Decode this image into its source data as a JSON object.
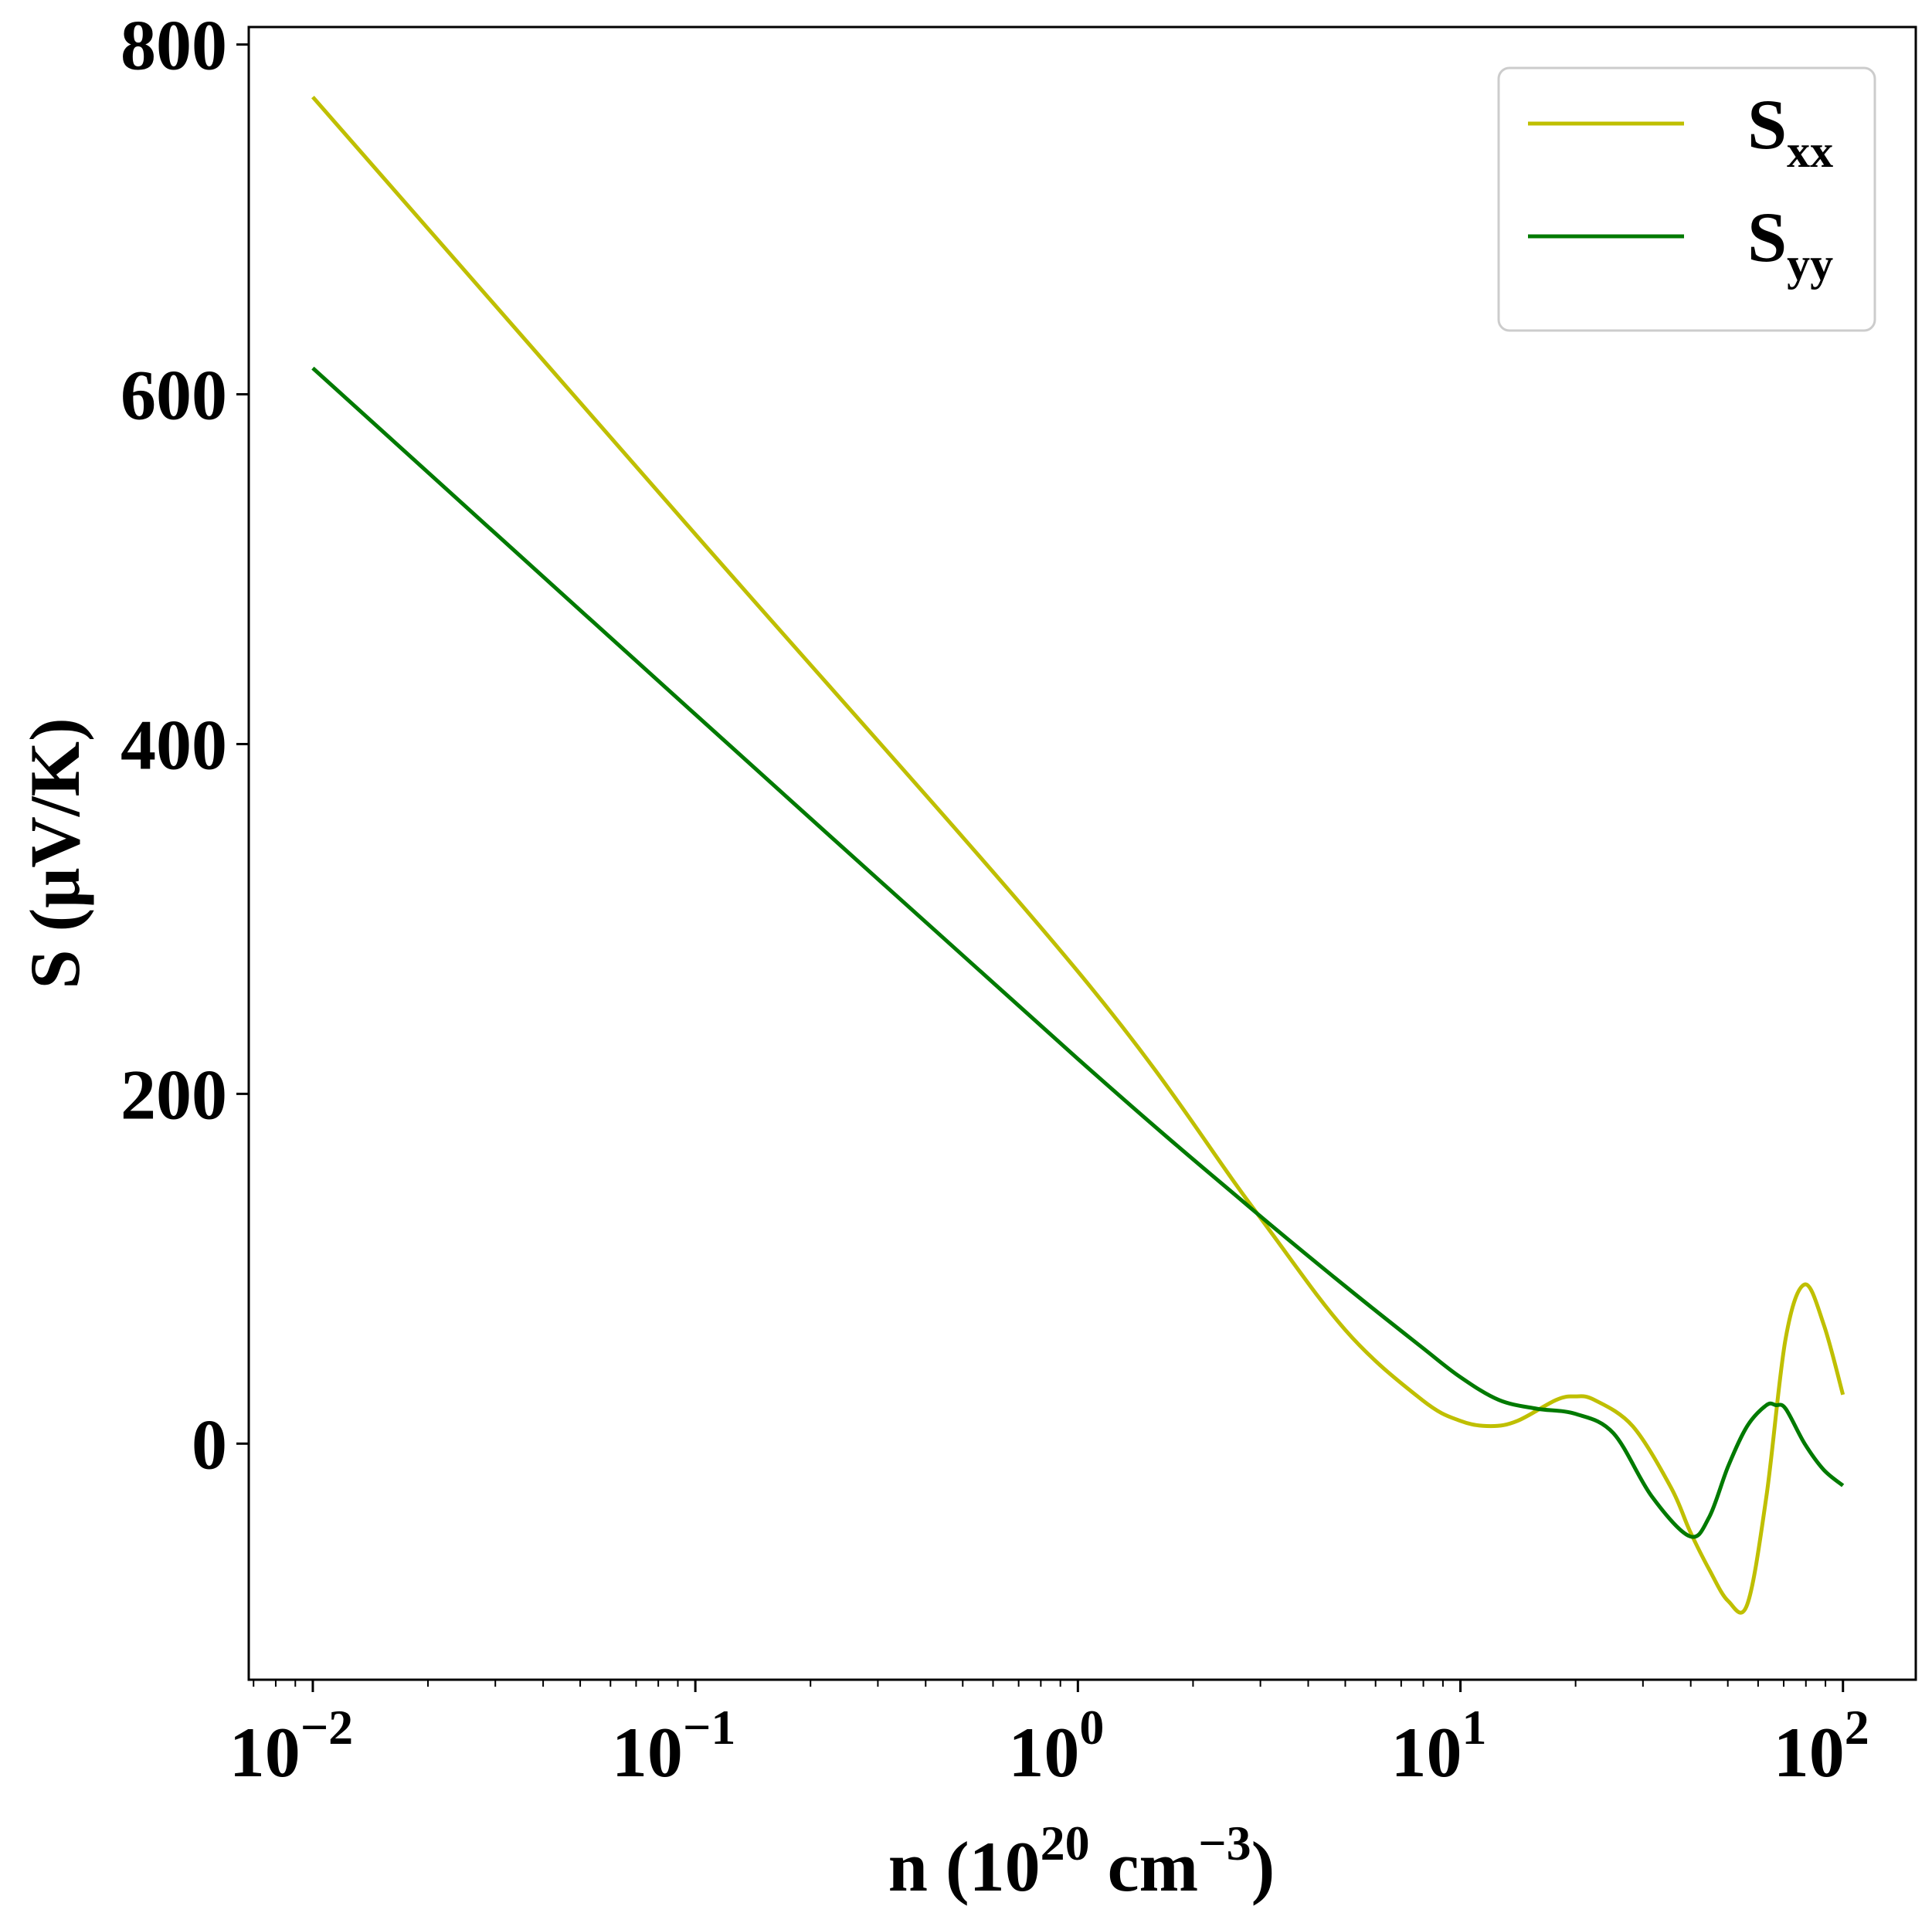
{
  "chart_data": {
    "type": "line",
    "title": "",
    "xlabel": {
      "main": "n (10",
      "sup1": "20",
      "mid": " cm",
      "sup2": "−3",
      "end": ")"
    },
    "ylabel": "S (μV/K)",
    "xscale": "log",
    "xlim": [
      0.0068,
      155
    ],
    "ylim": [
      -135,
      810
    ],
    "yticks": [
      {
        "value": 800,
        "label": "800"
      },
      {
        "value": 600,
        "label": "600"
      },
      {
        "value": 400,
        "label": "400"
      },
      {
        "value": 200,
        "label": "200"
      },
      {
        "value": 0,
        "label": "0"
      }
    ],
    "xticks": [
      {
        "value": 0.01,
        "base": "10",
        "exp": "−2"
      },
      {
        "value": 0.1,
        "base": "10",
        "exp": "−1"
      },
      {
        "value": 1,
        "base": "10",
        "exp": "0"
      },
      {
        "value": 10,
        "base": "10",
        "exp": "1"
      },
      {
        "value": 100,
        "base": "10",
        "exp": "2"
      }
    ],
    "legend_position": "top-right",
    "series": [
      {
        "name": "S",
        "sub": "xx",
        "color": "#bfbf00",
        "x": [
          0.01,
          0.1,
          1,
          2.82,
          5.0,
          7.94,
          10.0,
          12.0,
          14.1,
          17.8,
          20.0,
          22.4,
          28.2,
          35.5,
          39.8,
          44.7,
          50.1,
          56.2,
          63.1,
          70.8,
          79.4,
          89.1,
          100.0
        ],
        "y": [
          770,
          520,
          270,
          137,
          65,
          25,
          13,
          10,
          13,
          25,
          27,
          25,
          10,
          -25,
          -50,
          -72,
          -90,
          -92,
          -30,
          60,
          91,
          68,
          28
        ]
      },
      {
        "name": "S",
        "sub": "yy",
        "color": "#007a00",
        "x": [
          0.01,
          0.1,
          1,
          2.82,
          5.0,
          7.94,
          10.0,
          12.6,
          15.8,
          20.0,
          25.1,
          31.6,
          39.8,
          44.7,
          50.1,
          56.2,
          63.1,
          66.8,
          70.8,
          79.4,
          89.1,
          100.0
        ],
        "y": [
          615,
          417,
          220,
          135,
          90,
          55,
          38,
          25,
          20,
          17,
          6,
          -30,
          -53,
          -42,
          -13,
          10,
          22,
          22,
          20,
          0,
          -15,
          -24
        ]
      }
    ]
  }
}
